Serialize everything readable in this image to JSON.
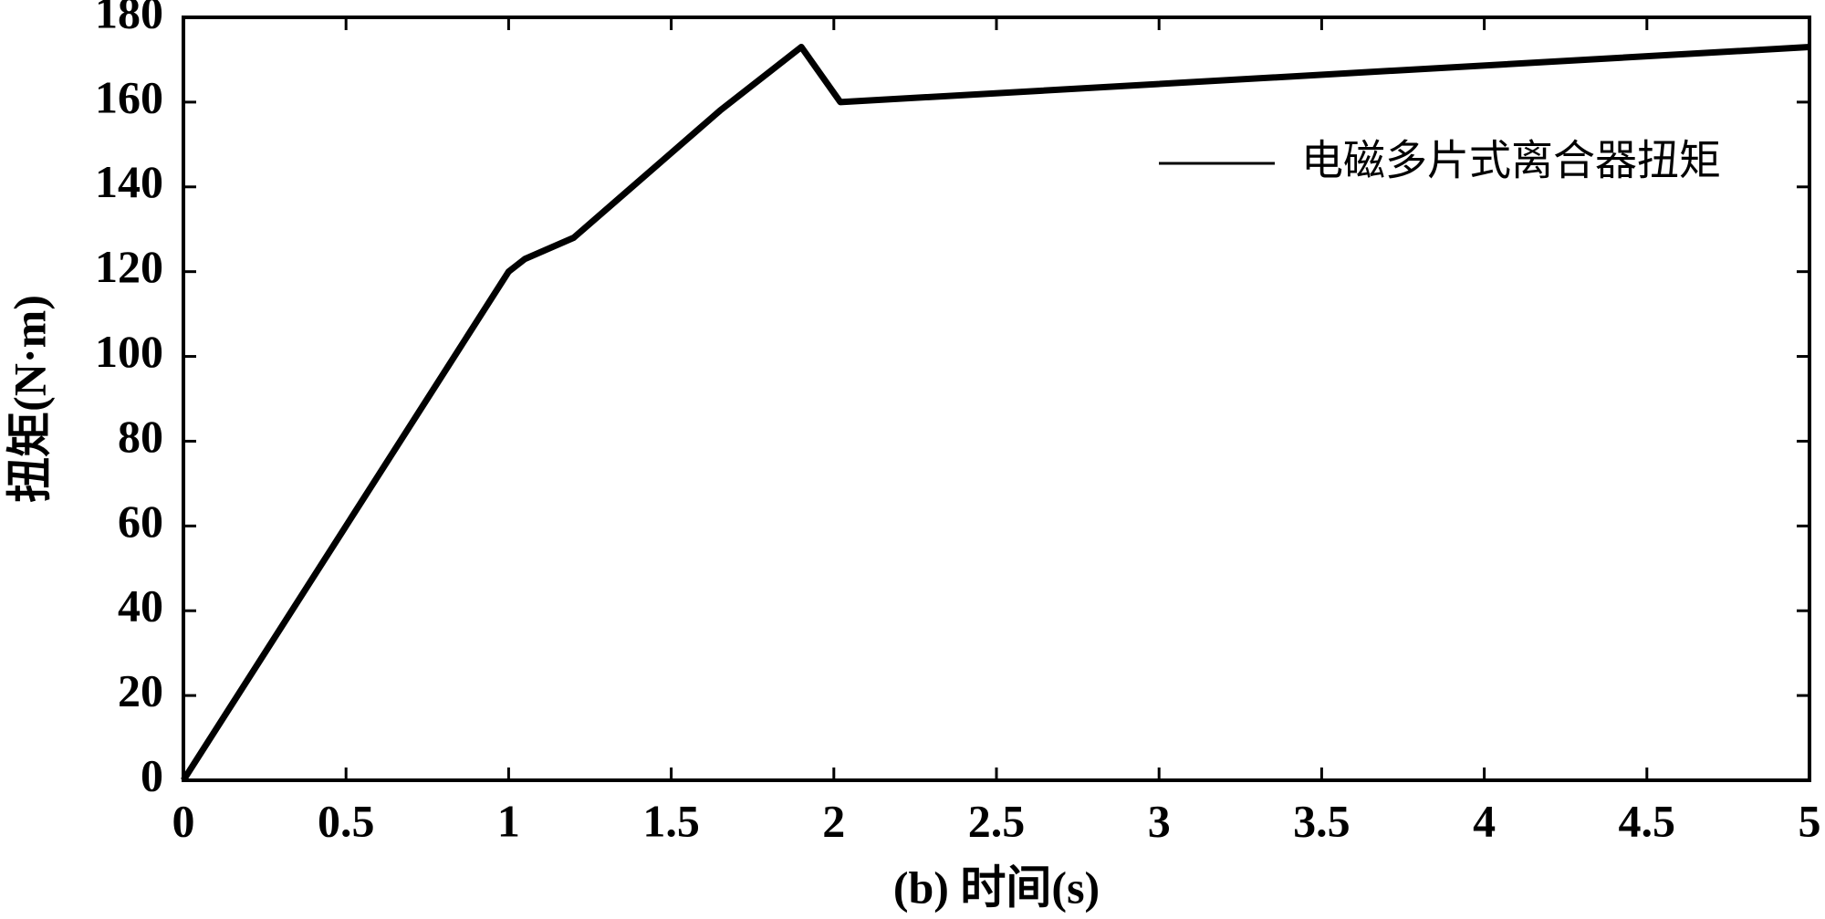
{
  "chart_data": {
    "type": "line",
    "xlabel": "(b) 时间(s)",
    "ylabel": "扭矩(N·m)",
    "x": [
      0,
      1,
      1.05,
      1.2,
      1.35,
      1.5,
      1.65,
      1.8,
      1.9,
      2.02,
      5
    ],
    "series": [
      {
        "name": "电磁多片式离合器扭矩",
        "color": "#000000",
        "values": [
          0,
          120,
          123,
          128,
          138,
          148,
          158,
          167,
          173,
          160,
          173
        ]
      }
    ],
    "xlim": [
      0,
      5
    ],
    "xticks": [
      0,
      0.5,
      1,
      1.5,
      2,
      2.5,
      3,
      3.5,
      4,
      4.5,
      5
    ],
    "ylim": [
      0,
      180
    ],
    "yticks": [
      0,
      20,
      40,
      60,
      80,
      100,
      120,
      140,
      160,
      180
    ],
    "grid": false,
    "legend": "upper right"
  }
}
